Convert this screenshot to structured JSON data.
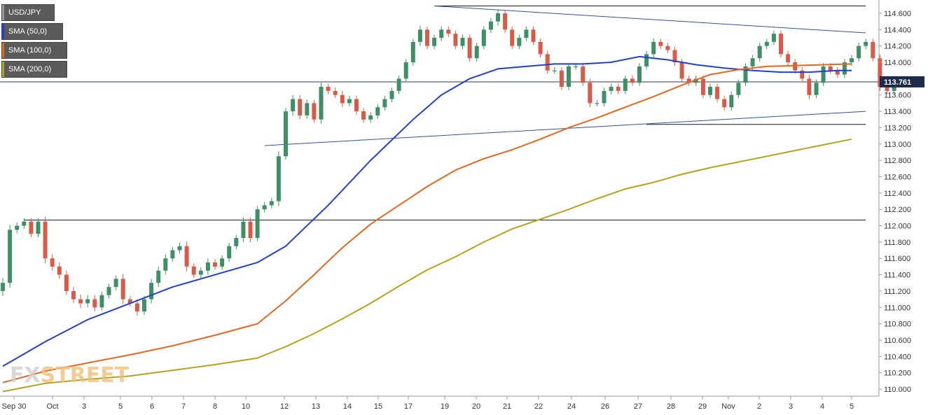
{
  "brand": {
    "left": "FX",
    "right": "STREET"
  },
  "legend": [
    {
      "label": "USD/JPY",
      "color": "#5b5b5b"
    },
    {
      "label": "SMA (50,0)",
      "color": "#1f3fd6"
    },
    {
      "label": "SMA (100,0)",
      "color": "#e8661c"
    },
    {
      "label": "SMA (200,0)",
      "color": "#b7a219"
    }
  ],
  "chart_data": {
    "type": "line",
    "title": "",
    "xlabel": "",
    "ylabel": "",
    "ylim": [
      109.9,
      114.7
    ],
    "grid": false,
    "legend_position": "top-left",
    "yticks": [
      "114.600",
      "114.400",
      "114.200",
      "114.000",
      "113.800",
      "113.600",
      "113.400",
      "113.200",
      "113.000",
      "112.800",
      "112.600",
      "112.400",
      "112.200",
      "112.000",
      "111.800",
      "111.600",
      "111.400",
      "111.200",
      "111.000",
      "110.800",
      "110.600",
      "110.400",
      "110.200",
      "110.000"
    ],
    "xticks": [
      "Sep 30",
      "Oct",
      "3",
      "5",
      "6",
      "7",
      "8",
      "10",
      "12",
      "13",
      "14",
      "15",
      "17",
      "19",
      "20",
      "21",
      "22",
      "24",
      "26",
      "27",
      "28",
      "29",
      "Nov",
      "2",
      "3",
      "4",
      "5"
    ],
    "last_price": "113.761",
    "candles": {
      "up_color": "#3e8f66",
      "down_color": "#d95b47",
      "close": [
        111.3,
        111.95,
        112.0,
        112.05,
        111.9,
        112.05,
        111.6,
        111.5,
        111.4,
        111.2,
        111.1,
        111.05,
        111.1,
        111.0,
        111.15,
        111.25,
        111.35,
        111.1,
        111.05,
        110.95,
        111.1,
        111.3,
        111.45,
        111.6,
        111.7,
        111.75,
        111.5,
        111.4,
        111.45,
        111.55,
        111.5,
        111.6,
        111.75,
        111.85,
        112.05,
        111.85,
        112.2,
        112.25,
        112.3,
        112.85,
        113.4,
        113.55,
        113.35,
        113.5,
        113.3,
        113.7,
        113.65,
        113.6,
        113.5,
        113.55,
        113.4,
        113.3,
        113.35,
        113.45,
        113.55,
        113.65,
        113.8,
        114.0,
        114.25,
        114.4,
        114.2,
        114.3,
        114.4,
        114.35,
        114.2,
        114.3,
        114.05,
        114.2,
        114.4,
        114.5,
        114.6,
        114.4,
        114.2,
        114.3,
        114.4,
        114.25,
        114.1,
        113.9,
        113.9,
        113.7,
        113.95,
        113.95,
        113.75,
        113.5,
        113.5,
        113.65,
        113.7,
        113.65,
        113.8,
        113.75,
        113.95,
        114.1,
        114.25,
        114.2,
        114.15,
        114.0,
        113.8,
        113.75,
        113.8,
        113.6,
        113.7,
        113.55,
        113.45,
        113.6,
        113.75,
        113.95,
        114.05,
        114.2,
        114.25,
        114.35,
        114.1,
        114.0,
        113.9,
        113.8,
        113.6,
        113.75,
        113.95,
        113.9,
        113.85,
        114.0,
        114.05,
        114.2,
        114.25,
        114.05,
        113.7,
        113.65,
        113.76
      ],
      "range": [
        0.12,
        0.12,
        0.08,
        0.08,
        0.08,
        0.08,
        0.12,
        0.1,
        0.1,
        0.1,
        0.1,
        0.12,
        0.1,
        0.1,
        0.08,
        0.08,
        0.08,
        0.12,
        0.08,
        0.1,
        0.08,
        0.1,
        0.1,
        0.1,
        0.08,
        0.08,
        0.12,
        0.08,
        0.08,
        0.1,
        0.08,
        0.08,
        0.08,
        0.08,
        0.1,
        0.1,
        0.08,
        0.08,
        0.08,
        0.12,
        0.08,
        0.1,
        0.1,
        0.08,
        0.08,
        0.1,
        0.08,
        0.08,
        0.1,
        0.08,
        0.08,
        0.08,
        0.08,
        0.08,
        0.08,
        0.08,
        0.08,
        0.08,
        0.08,
        0.1,
        0.08,
        0.08,
        0.08,
        0.08,
        0.08,
        0.08,
        0.08,
        0.08,
        0.08,
        0.08,
        0.1,
        0.08,
        0.08,
        0.08,
        0.08,
        0.08,
        0.08,
        0.08,
        0.08,
        0.08,
        0.08,
        0.08,
        0.08,
        0.1,
        0.08,
        0.08,
        0.08,
        0.08,
        0.08,
        0.08,
        0.08,
        0.08,
        0.08,
        0.08,
        0.08,
        0.08,
        0.08,
        0.08,
        0.08,
        0.08,
        0.08,
        0.08,
        0.08,
        0.08,
        0.08,
        0.08,
        0.08,
        0.08,
        0.08,
        0.08,
        0.08,
        0.08,
        0.08,
        0.08,
        0.1,
        0.08,
        0.08,
        0.08,
        0.08,
        0.08,
        0.08,
        0.08,
        0.08,
        0.08,
        0.1,
        0.08,
        0.08
      ]
    },
    "series": [
      {
        "name": "SMA (50,0)",
        "color": "#1f3fd6",
        "points": [
          [
            0,
            110.28
          ],
          [
            6,
            110.58
          ],
          [
            12,
            110.85
          ],
          [
            18,
            111.05
          ],
          [
            24,
            111.25
          ],
          [
            30,
            111.4
          ],
          [
            36,
            111.55
          ],
          [
            40,
            111.75
          ],
          [
            46,
            112.25
          ],
          [
            52,
            112.8
          ],
          [
            58,
            113.3
          ],
          [
            62,
            113.6
          ],
          [
            66,
            113.8
          ],
          [
            70,
            113.92
          ],
          [
            74,
            113.95
          ],
          [
            78,
            113.98
          ],
          [
            82,
            113.98
          ],
          [
            86,
            114.0
          ],
          [
            90,
            114.07
          ],
          [
            94,
            114.03
          ],
          [
            98,
            113.97
          ],
          [
            102,
            113.93
          ],
          [
            106,
            113.9
          ],
          [
            110,
            113.88
          ],
          [
            114,
            113.88
          ],
          [
            118,
            113.9
          ],
          [
            120,
            113.9
          ]
        ]
      },
      {
        "name": "SMA (100,0)",
        "color": "#e8661c",
        "points": [
          [
            0,
            110.08
          ],
          [
            6,
            110.22
          ],
          [
            12,
            110.32
          ],
          [
            18,
            110.42
          ],
          [
            24,
            110.53
          ],
          [
            30,
            110.66
          ],
          [
            36,
            110.8
          ],
          [
            40,
            111.08
          ],
          [
            44,
            111.4
          ],
          [
            48,
            111.73
          ],
          [
            52,
            112.02
          ],
          [
            56,
            112.25
          ],
          [
            60,
            112.48
          ],
          [
            64,
            112.68
          ],
          [
            68,
            112.82
          ],
          [
            72,
            112.93
          ],
          [
            76,
            113.06
          ],
          [
            80,
            113.2
          ],
          [
            84,
            113.32
          ],
          [
            88,
            113.45
          ],
          [
            92,
            113.58
          ],
          [
            96,
            113.72
          ],
          [
            100,
            113.85
          ],
          [
            104,
            113.91
          ],
          [
            108,
            113.95
          ],
          [
            112,
            113.96
          ],
          [
            116,
            113.97
          ],
          [
            120,
            113.98
          ]
        ]
      },
      {
        "name": "SMA (200,0)",
        "color": "#b7a219",
        "points": [
          [
            0,
            109.97
          ],
          [
            6,
            110.07
          ],
          [
            12,
            110.12
          ],
          [
            18,
            110.16
          ],
          [
            24,
            110.23
          ],
          [
            30,
            110.3
          ],
          [
            36,
            110.38
          ],
          [
            40,
            110.52
          ],
          [
            44,
            110.68
          ],
          [
            48,
            110.86
          ],
          [
            52,
            111.05
          ],
          [
            56,
            111.26
          ],
          [
            60,
            111.46
          ],
          [
            64,
            111.62
          ],
          [
            68,
            111.8
          ],
          [
            72,
            111.96
          ],
          [
            76,
            112.08
          ],
          [
            80,
            112.2
          ],
          [
            84,
            112.33
          ],
          [
            88,
            112.45
          ],
          [
            92,
            112.53
          ],
          [
            96,
            112.63
          ],
          [
            100,
            112.71
          ],
          [
            104,
            112.78
          ],
          [
            108,
            112.85
          ],
          [
            112,
            112.92
          ],
          [
            116,
            112.99
          ],
          [
            120,
            113.06
          ]
        ]
      }
    ],
    "annotations": {
      "hline_color": "#1a1a1a",
      "hlines": [
        [
          114.69,
          61,
          122
        ],
        [
          112.07,
          3,
          122
        ],
        [
          113.24,
          91,
          122
        ]
      ],
      "trend_color": "#2a4fa8",
      "trendlines": [
        [
          61,
          114.69,
          122,
          114.36
        ],
        [
          37,
          112.98,
          122,
          113.4
        ]
      ],
      "price_line_color": "#26355e",
      "price_line_value": 113.761
    }
  }
}
